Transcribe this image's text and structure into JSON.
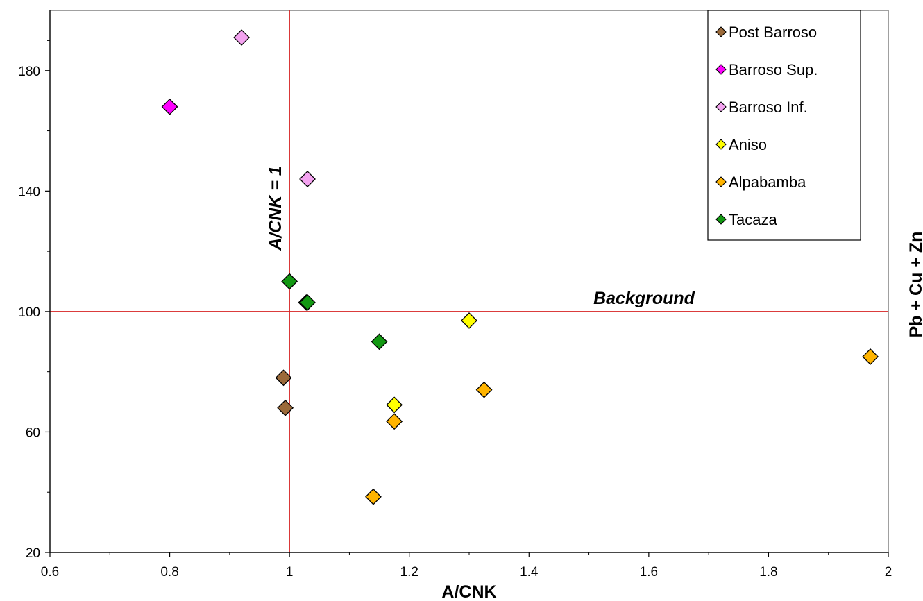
{
  "chart_data": {
    "type": "scatter",
    "xlabel": "A/CNK",
    "ylabel": "Pb + Cu + Zn",
    "xlim": [
      0.6,
      2.0
    ],
    "ylim": [
      20,
      200
    ],
    "xticks": [
      0.6,
      0.8,
      1.0,
      1.2,
      1.4,
      1.6,
      1.8,
      2.0
    ],
    "xtick_labels": [
      "0.6",
      "0.8",
      "1",
      "1.2",
      "1.4",
      "1.6",
      "1.8",
      "2"
    ],
    "yticks": [
      20,
      60,
      100,
      140,
      180
    ],
    "ytick_labels": [
      "20",
      "60",
      "100",
      "140",
      "180"
    ],
    "grid": false,
    "legend_position": "top-right",
    "reference_lines": [
      {
        "orientation": "vertical",
        "value": 1.0,
        "label": "A/CNK = 1",
        "color": "#d62020"
      },
      {
        "orientation": "horizontal",
        "value": 100,
        "label": "Background",
        "color": "#d62020"
      }
    ],
    "series": [
      {
        "name": "Post Barroso",
        "marker": "diamond",
        "color": "#9b6a3a",
        "points": [
          [
            0.99,
            78
          ],
          [
            0.993,
            68
          ]
        ]
      },
      {
        "name": "Barroso Sup.",
        "marker": "diamond",
        "color": "#ff00ff",
        "points": [
          [
            0.8,
            168
          ]
        ]
      },
      {
        "name": "Barroso Inf.",
        "marker": "diamond",
        "color": "#f4a3f0",
        "points": [
          [
            0.92,
            191
          ],
          [
            1.03,
            144
          ]
        ]
      },
      {
        "name": "Aniso",
        "marker": "diamond",
        "color": "#ffff00",
        "points": [
          [
            1.3,
            97
          ],
          [
            1.175,
            69
          ]
        ]
      },
      {
        "name": "Alpabamba",
        "marker": "diamond",
        "color": "#ffb400",
        "points": [
          [
            1.97,
            85
          ],
          [
            1.325,
            74
          ],
          [
            1.175,
            63.5
          ],
          [
            1.14,
            38.5
          ]
        ]
      },
      {
        "name": "Tacaza",
        "marker": "diamond",
        "color": "#129812",
        "points": [
          [
            1.0,
            110
          ],
          [
            1.028,
            103
          ],
          [
            1.03,
            103
          ],
          [
            1.15,
            90
          ]
        ]
      }
    ]
  }
}
